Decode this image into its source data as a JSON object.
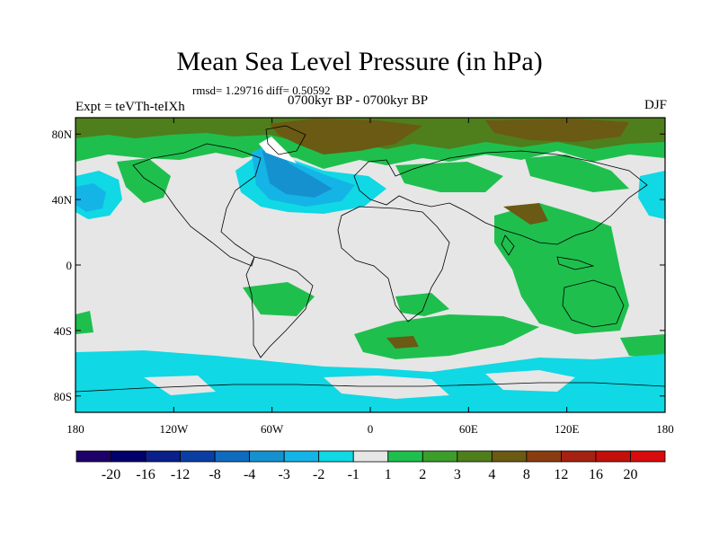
{
  "title": "Mean Sea Level Pressure (in hPa)",
  "stats_text": "rmsd= 1.29716 diff= 0.50592",
  "experiment_label": "Expt = teVTh-teIXh",
  "period_label": "0700kyr BP - 0700kyr BP",
  "season_label": "DJF",
  "map": {
    "lon_ticks": [
      "180",
      "120W",
      "60W",
      "0",
      "60E",
      "120E",
      "180"
    ],
    "lat_ticks": [
      "80N",
      "40N",
      "0",
      "40S",
      "80S"
    ],
    "ocean_color": "#e6e6e6"
  },
  "colorbar": {
    "levels": [
      "-20",
      "-16",
      "-12",
      "-8",
      "-4",
      "-3",
      "-2",
      "-1",
      "1",
      "2",
      "3",
      "4",
      "8",
      "12",
      "16",
      "20"
    ],
    "colors": [
      "#1d0068",
      "#00006b",
      "#0a1f8a",
      "#0b3ea3",
      "#0f6bbe",
      "#1691d0",
      "#14b5e6",
      "#10d8e4",
      "#e6e6e6",
      "#1fbf4e",
      "#3c9d2a",
      "#4f7e1c",
      "#6a5a13",
      "#8a3c10",
      "#a52212",
      "#c2100a",
      "#d80c0c"
    ]
  }
}
